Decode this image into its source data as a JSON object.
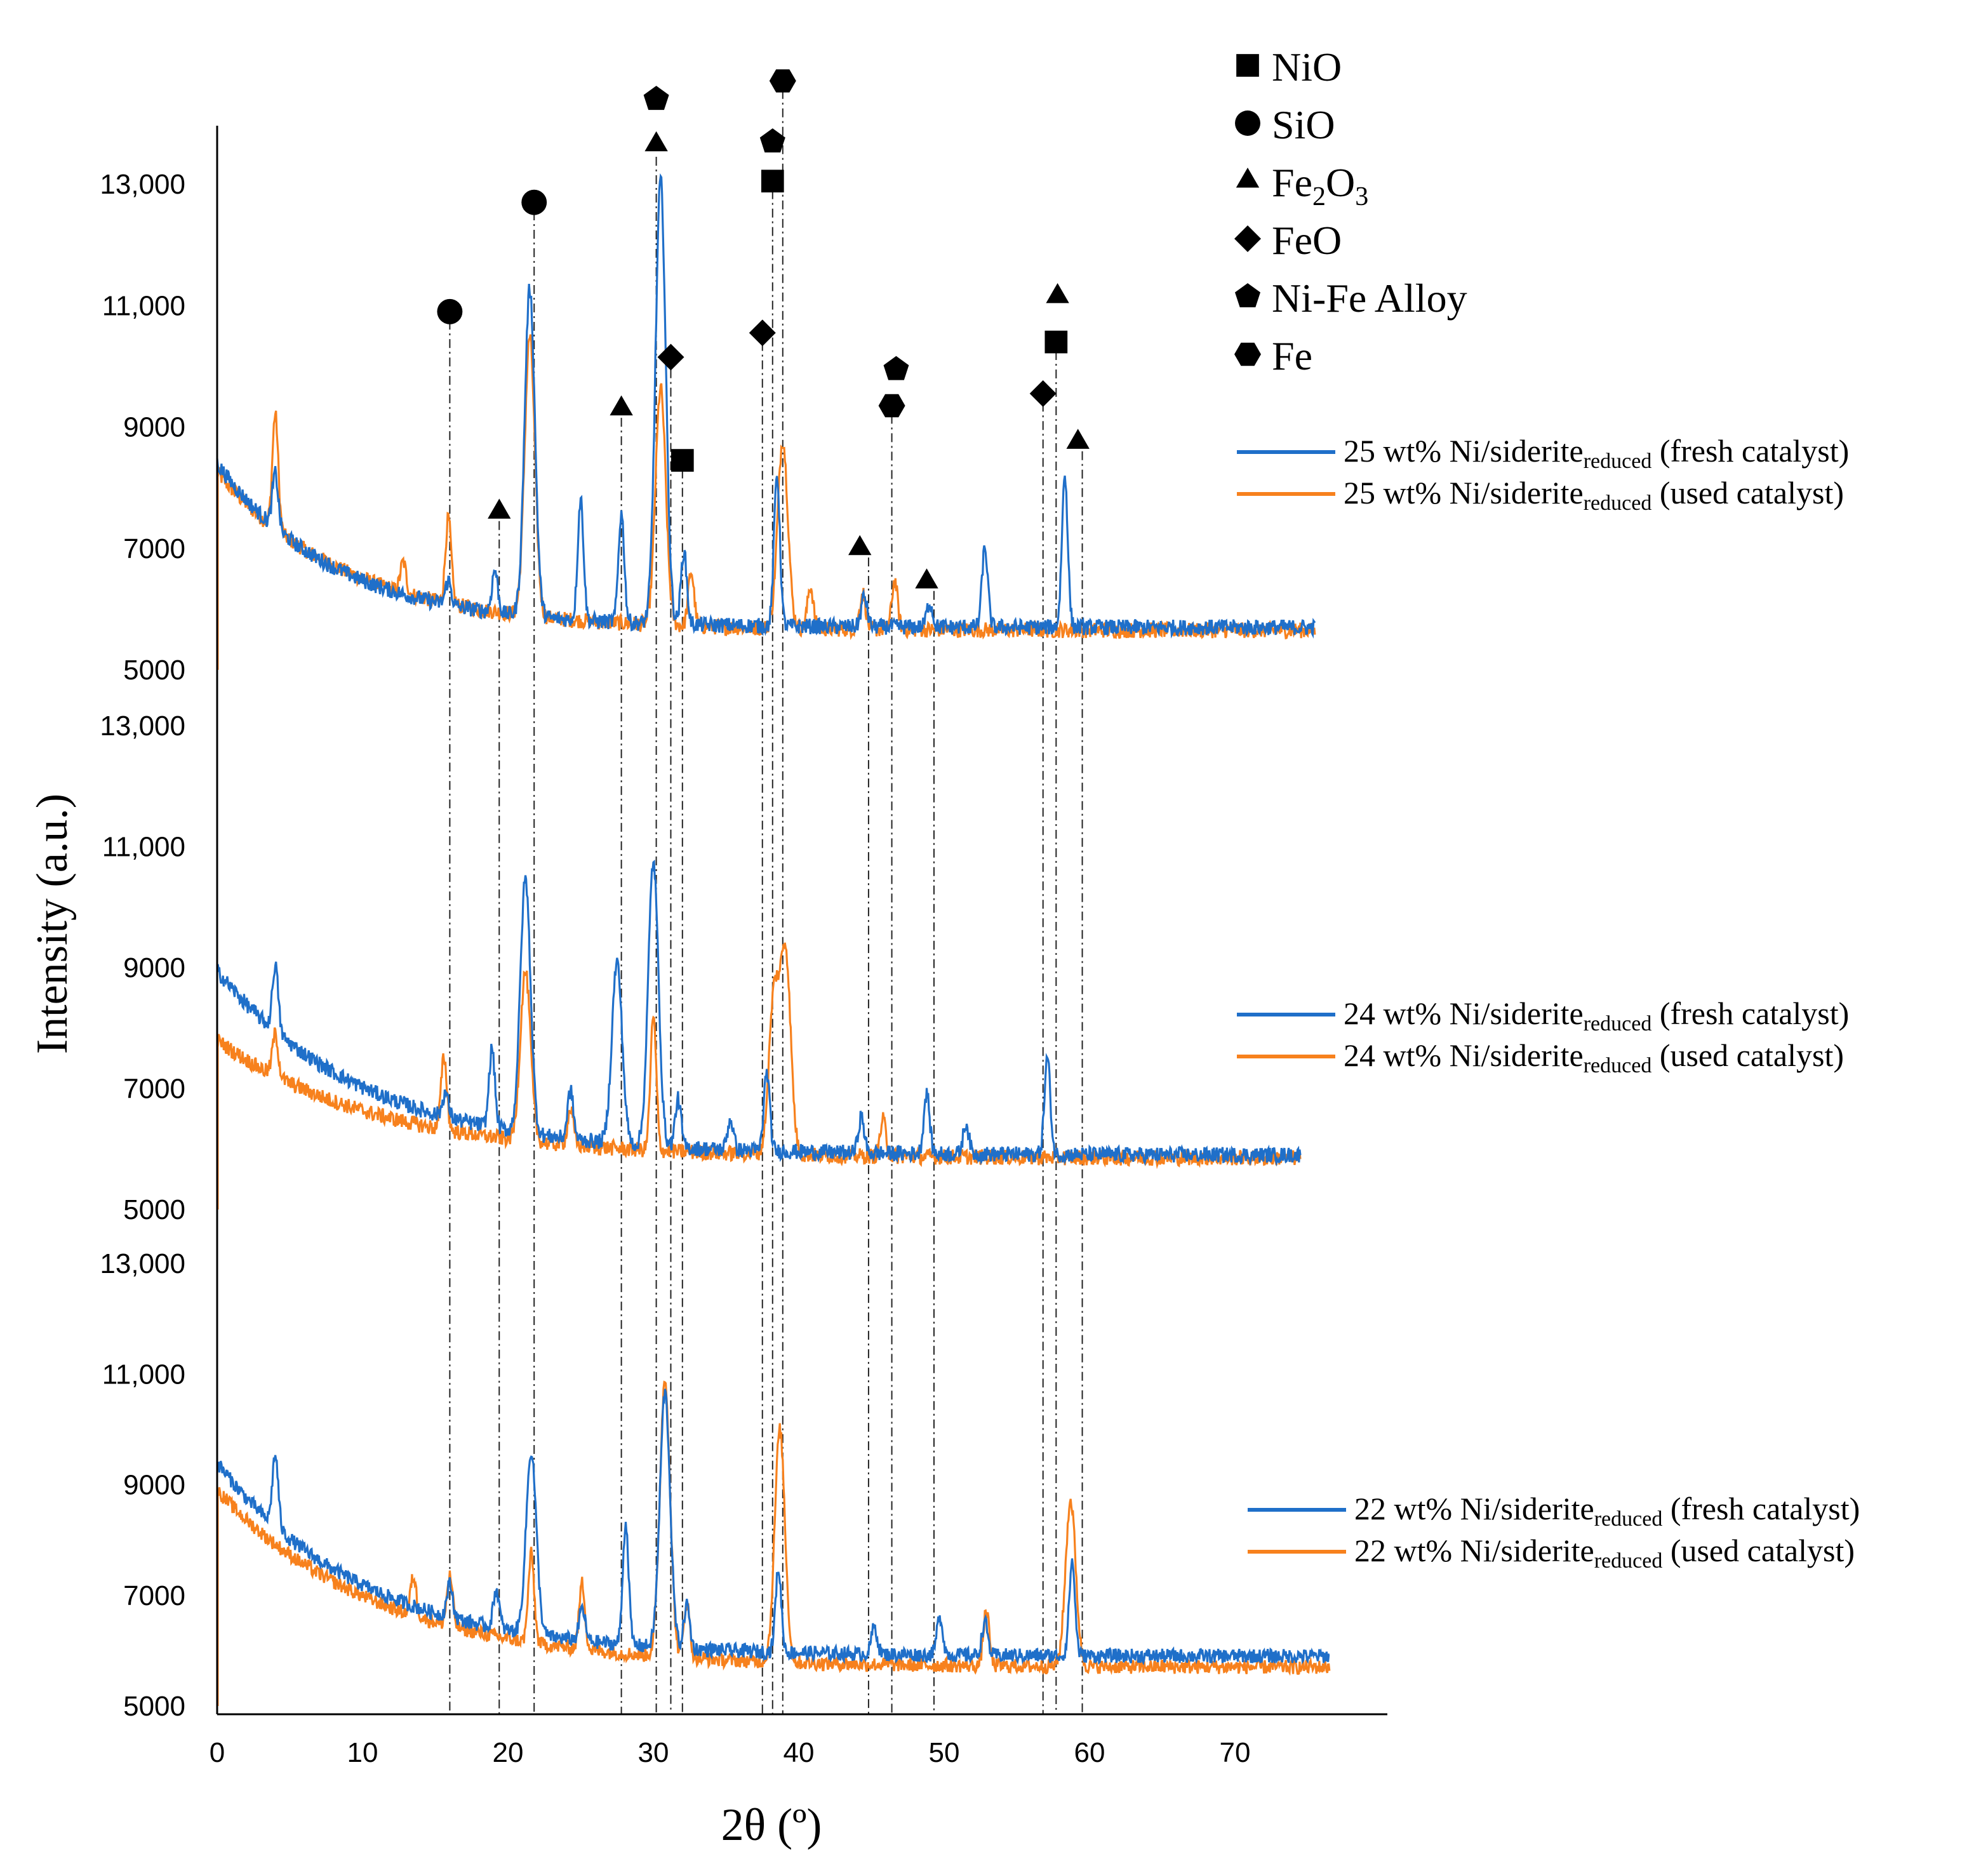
{
  "chart_data": {
    "type": "line",
    "xlabel": "2θ (º)",
    "ylabel": "Intensity (a.u.)",
    "xlim": [
      0,
      80
    ],
    "x_ticks": [
      0,
      10,
      20,
      30,
      40,
      50,
      60,
      70
    ],
    "colors": {
      "fresh": "#1f6fc9",
      "used": "#f7811d"
    },
    "panels": [
      {
        "id": "p25",
        "ylim": [
          5000,
          14000
        ],
        "y_ticks": [
          {
            "value": 13000,
            "label": "13,000"
          },
          {
            "value": 11000,
            "label": "11,000"
          },
          {
            "value": 9000,
            "label": "9000"
          },
          {
            "value": 7000,
            "label": "7000"
          },
          {
            "value": 5000,
            "label": "5000"
          }
        ],
        "series": [
          {
            "name": "fresh",
            "legend_label": "25 wt% Ni/siderite",
            "legend_sub": "reduced",
            "legend_note": "(fresh catalyst)",
            "base_start": 8400,
            "base_end": 5700,
            "tau": 8,
            "peaks": [
              [
                4,
                900
              ],
              [
                15.9,
                400
              ],
              [
                19.1,
                700
              ],
              [
                21.5,
                5400
              ],
              [
                25,
                2000
              ],
              [
                27.8,
                1800
              ],
              [
                30.5,
                7300
              ],
              [
                32.1,
                1200
              ],
              [
                38.5,
                2500
              ],
              [
                44.5,
                500
              ],
              [
                49,
                400
              ],
              [
                52.8,
                1300
              ],
              [
                58.3,
                2500
              ]
            ]
          },
          {
            "name": "used",
            "legend_label": "25 wt% Ni/siderite",
            "legend_sub": "reduced",
            "legend_note": "(used catalyst)",
            "base_start": 8250,
            "base_end": 5650,
            "tau": 9,
            "peaks": [
              [
                4,
                1900
              ],
              [
                12.8,
                500
              ],
              [
                15.9,
                1400
              ],
              [
                21.5,
                4600
              ],
              [
                30.5,
                3900
              ],
              [
                32.6,
                900
              ],
              [
                38.9,
                3100
              ],
              [
                40.8,
                700
              ],
              [
                44.4,
                600
              ],
              [
                46.6,
                800
              ]
            ]
          }
        ]
      },
      {
        "id": "p24",
        "ylim": [
          5000,
          13500
        ],
        "y_ticks": [
          {
            "value": 13000,
            "label": "13,000"
          },
          {
            "value": 11000,
            "label": "11,000"
          },
          {
            "value": 9000,
            "label": "9000"
          },
          {
            "value": 7000,
            "label": "7000"
          },
          {
            "value": 5000,
            "label": "5000"
          }
        ],
        "series": [
          {
            "name": "fresh",
            "legend_label": "24 wt% Ni/siderite",
            "legend_sub": "reduced",
            "legend_note": "(fresh catalyst)",
            "base_start": 8950,
            "base_end": 5900,
            "tau": 10,
            "peaks": [
              [
                4,
                1100
              ],
              [
                15.7,
                400
              ],
              [
                18.9,
                1300
              ],
              [
                21.2,
                4200
              ],
              [
                24.3,
                800
              ],
              [
                27.5,
                3000
              ],
              [
                30,
                4700
              ],
              [
                31.7,
                800
              ],
              [
                35.3,
                500
              ],
              [
                37.8,
                1300
              ],
              [
                44.3,
                600
              ],
              [
                48.8,
                1000
              ],
              [
                51.5,
                500
              ],
              [
                57.1,
                1600
              ]
            ]
          },
          {
            "name": "used",
            "legend_label": "24 wt% Ni/siderite",
            "legend_sub": "reduced",
            "legend_note": "(used catalyst)",
            "base_start": 7800,
            "base_end": 5850,
            "tau": 11,
            "peaks": [
              [
                4,
                700
              ],
              [
                15.6,
                1200
              ],
              [
                21.2,
                2800
              ],
              [
                24.3,
                600
              ],
              [
                30,
                2200
              ],
              [
                38.3,
                2600
              ],
              [
                39.1,
                3300
              ],
              [
                45.8,
                600
              ]
            ]
          }
        ]
      },
      {
        "id": "p22",
        "ylim": [
          5000,
          13000
        ],
        "y_ticks": [
          {
            "value": 13000,
            "label": "13,000"
          },
          {
            "value": 11000,
            "label": "11,000"
          },
          {
            "value": 9000,
            "label": "9000"
          },
          {
            "value": 7000,
            "label": "7000"
          },
          {
            "value": 5000,
            "label": "5000"
          }
        ],
        "series": [
          {
            "name": "fresh",
            "legend_label": "22 wt% Ni/siderite",
            "legend_sub": "reduced",
            "legend_note": "(fresh catalyst)",
            "base_start": 9400,
            "base_end": 5900,
            "tau": 10,
            "peaks": [
              [
                4,
                1300
              ],
              [
                16,
                600
              ],
              [
                19.2,
                700
              ],
              [
                21.6,
                3300
              ],
              [
                25.1,
                600
              ],
              [
                28.1,
                2200
              ],
              [
                30.8,
                4600
              ],
              [
                32.3,
                800
              ],
              [
                38.6,
                1500
              ],
              [
                45.2,
                500
              ],
              [
                49.7,
                700
              ],
              [
                52.8,
                600
              ],
              [
                58.8,
                1700
              ]
            ]
          },
          {
            "name": "used",
            "legend_label": "22 wt% Ni/siderite",
            "legend_sub": "reduced",
            "legend_note": "(used catalyst)",
            "base_start": 8900,
            "base_end": 5700,
            "tau": 11,
            "peaks": [
              [
                13.5,
                700
              ],
              [
                16,
                900
              ],
              [
                21.6,
                1600
              ],
              [
                25.1,
                1200
              ],
              [
                30.8,
                5000
              ],
              [
                32.3,
                1000
              ],
              [
                38.7,
                4200
              ],
              [
                52.9,
                1000
              ],
              [
                58.7,
                3000
              ]
            ]
          }
        ]
      }
    ],
    "phase_legend": [
      {
        "symbol": "square",
        "label": "NiO"
      },
      {
        "symbol": "circle",
        "label": "SiO"
      },
      {
        "symbol": "triangle",
        "label": "Fe",
        "sub1": "2",
        "mid": "O",
        "sub2": "3"
      },
      {
        "symbol": "diamond",
        "label": "FeO"
      },
      {
        "symbol": "pentagon",
        "label": "Ni-Fe Alloy"
      },
      {
        "symbol": "hexagon",
        "label": "Fe"
      }
    ],
    "peak_markers": [
      {
        "x": 16,
        "y": 10900,
        "symbol": "circle"
      },
      {
        "x": 21.8,
        "y": 12700,
        "symbol": "circle"
      },
      {
        "x": 19.4,
        "y": 7600,
        "symbol": "triangle"
      },
      {
        "x": 27.8,
        "y": 9300,
        "symbol": "triangle"
      },
      {
        "x": 30.2,
        "y": 13650,
        "symbol": "triangle"
      },
      {
        "x": 30.2,
        "y": 14400,
        "symbol": "pentagon"
      },
      {
        "x": 31.2,
        "y": 10150,
        "symbol": "diamond"
      },
      {
        "x": 32,
        "y": 8450,
        "symbol": "square"
      },
      {
        "x": 37.5,
        "y": 10550,
        "symbol": "diamond"
      },
      {
        "x": 38.2,
        "y": 13050,
        "symbol": "square"
      },
      {
        "x": 38.2,
        "y": 13700,
        "symbol": "pentagon"
      },
      {
        "x": 38.9,
        "y": 14700,
        "symbol": "hexagon"
      },
      {
        "x": 44.2,
        "y": 7000,
        "symbol": "triangle"
      },
      {
        "x": 46.7,
        "y": 9950,
        "symbol": "pentagon"
      },
      {
        "x": 46.4,
        "y": 9350,
        "symbol": "hexagon"
      },
      {
        "x": 48.8,
        "y": 6450,
        "symbol": "triangle"
      },
      {
        "x": 56.8,
        "y": 9550,
        "symbol": "diamond"
      },
      {
        "x": 57.7,
        "y": 10400,
        "symbol": "square"
      },
      {
        "x": 57.8,
        "y": 11150,
        "symbol": "triangle"
      },
      {
        "x": 59.2,
        "y": 8750,
        "symbol": "triangle"
      }
    ],
    "guide_lines": [
      {
        "x": 16,
        "from": 10750
      },
      {
        "x": 19.4,
        "from": 7450
      },
      {
        "x": 21.8,
        "from": 12550
      },
      {
        "x": 27.8,
        "from": 9150
      },
      {
        "x": 30.2,
        "from": 13450
      },
      {
        "x": 31.2,
        "from": 9950
      },
      {
        "x": 32,
        "from": 8300
      },
      {
        "x": 37.5,
        "from": 10400
      },
      {
        "x": 38.2,
        "from": 12900
      },
      {
        "x": 38.9,
        "from": 14550
      },
      {
        "x": 44.8,
        "from": 6850
      },
      {
        "x": 46.4,
        "from": 9200
      },
      {
        "x": 49.3,
        "from": 6300
      },
      {
        "x": 56.8,
        "from": 9400
      },
      {
        "x": 57.7,
        "from": 10250
      },
      {
        "x": 59.5,
        "from": 8600
      }
    ]
  }
}
